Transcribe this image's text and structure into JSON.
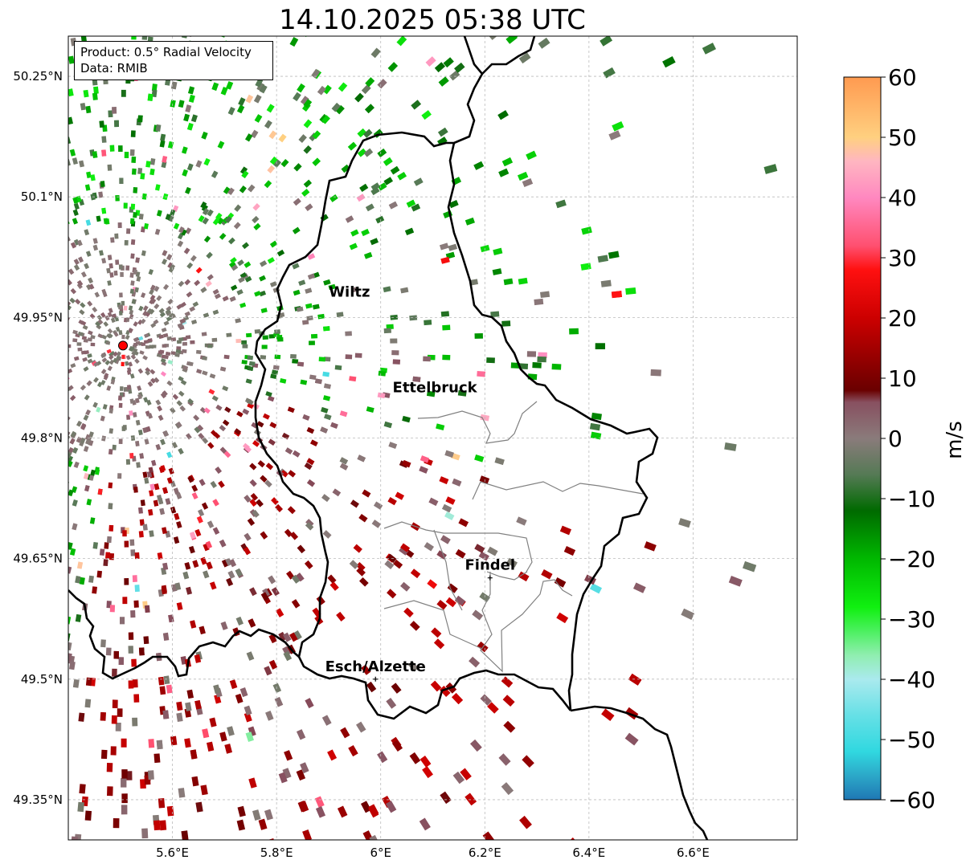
{
  "title": "14.10.2025 05:38 UTC",
  "info": {
    "product": "Product: 0.5° Radial Velocity",
    "data_source": "Data: RMIB"
  },
  "axes": {
    "lon_ticks": [
      "5.6°E",
      "5.8°E",
      "6°E",
      "6.2°E",
      "6.4°E",
      "6.6°E"
    ],
    "lon_values": [
      5.6,
      5.8,
      6.0,
      6.2,
      6.4,
      6.6
    ],
    "lat_ticks": [
      "50.25°N",
      "50.1°N",
      "49.95°N",
      "49.8°N",
      "49.65°N",
      "49.5°N",
      "49.35°N"
    ],
    "lat_values": [
      50.25,
      50.1,
      49.95,
      49.8,
      49.65,
      49.5,
      49.35
    ],
    "lon_range": [
      5.4,
      6.8
    ],
    "lat_range": [
      49.3,
      50.3
    ],
    "grid": true
  },
  "cities": [
    {
      "name": "Wiltz",
      "lon": 5.94,
      "lat": 49.966,
      "marker": false
    },
    {
      "name": "Ettelbruck",
      "lon": 6.104,
      "lat": 49.847,
      "marker": false
    },
    {
      "name": "Findel",
      "lon": 6.21,
      "lat": 49.626,
      "marker": true
    },
    {
      "name": "Esch/Alzette",
      "lon": 5.99,
      "lat": 49.5,
      "marker": true
    }
  ],
  "radar_site": {
    "lon": 5.505,
    "lat": 49.915,
    "color": "#ff0000"
  },
  "colorbar": {
    "label": "m/s",
    "ticks": [
      "60",
      "50",
      "40",
      "30",
      "20",
      "10",
      "0",
      "−10",
      "−20",
      "−30",
      "−40",
      "−50",
      "−60"
    ],
    "tick_values": [
      60,
      50,
      40,
      30,
      20,
      10,
      0,
      -10,
      -20,
      -30,
      -40,
      -50,
      -60
    ],
    "range": [
      -60,
      60
    ],
    "stops": [
      {
        "v": -60,
        "color": "#1f77b4"
      },
      {
        "v": -56,
        "color": "#2ca8c8"
      },
      {
        "v": -52,
        "color": "#30d8e0"
      },
      {
        "v": -46,
        "color": "#66e0e6"
      },
      {
        "v": -40,
        "color": "#aaeaee"
      },
      {
        "v": -36,
        "color": "#90eeb0"
      },
      {
        "v": -32,
        "color": "#4cf060"
      },
      {
        "v": -28,
        "color": "#10f010"
      },
      {
        "v": -20,
        "color": "#00b800"
      },
      {
        "v": -12,
        "color": "#006a00"
      },
      {
        "v": -6,
        "color": "#557a55"
      },
      {
        "v": 0,
        "color": "#8a7b7b"
      },
      {
        "v": 6,
        "color": "#885060"
      },
      {
        "v": 8,
        "color": "#6a0000"
      },
      {
        "v": 20,
        "color": "#cc0000"
      },
      {
        "v": 28,
        "color": "#ff1010"
      },
      {
        "v": 32,
        "color": "#ff5070"
      },
      {
        "v": 40,
        "color": "#ff88c0"
      },
      {
        "v": 46,
        "color": "#ffb6c1"
      },
      {
        "v": 50,
        "color": "#ffd080"
      },
      {
        "v": 60,
        "color": "#ff9a50"
      }
    ]
  },
  "map_colors": {
    "country_border": "#000000",
    "canton_border": "#808080",
    "grid": "#bbbbbb"
  }
}
